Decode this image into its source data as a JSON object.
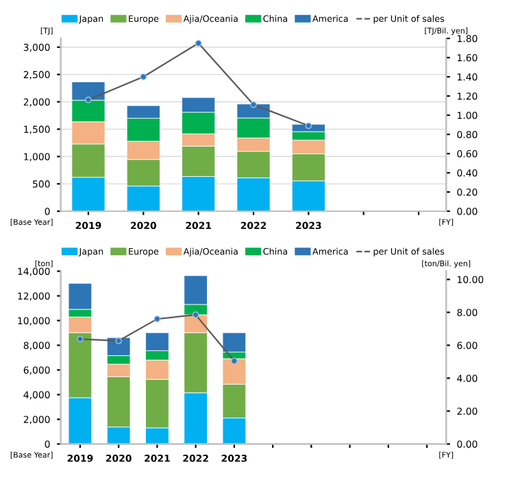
{
  "chart_data": [
    {
      "type": "bar",
      "stacked": true,
      "categories": [
        "2019",
        "2020",
        "2021",
        "2022",
        "2023",
        null,
        null
      ],
      "ylabel": "[TJ]",
      "y2label": "[TJ/Bil. yen]",
      "ylim": [
        0,
        3160
      ],
      "yticks": [
        0,
        {
          "value": 500,
          "label": "500"
        },
        {
          "value": 1000,
          "label": "1,000"
        },
        {
          "value": 1500,
          "label": "1,500"
        },
        {
          "value": 2000,
          "label": "2,000"
        },
        {
          "value": 2500,
          "label": "2,500"
        },
        {
          "value": 3000,
          "label": "3,000"
        }
      ],
      "y2lim": [
        0,
        1.8
      ],
      "y2ticks": [
        {
          "value": 0,
          "label": "0.00"
        },
        {
          "value": 0.2,
          "label": "0.20"
        },
        {
          "value": 0.4,
          "label": "0.40"
        },
        {
          "value": 0.6,
          "label": "0.60"
        },
        {
          "value": 0.8,
          "label": "0.80"
        },
        {
          "value": 1.0,
          "label": "1.00"
        },
        {
          "value": 1.2,
          "label": "1.20"
        },
        {
          "value": 1.4,
          "label": "1.40"
        },
        {
          "value": 1.6,
          "label": "1.60"
        },
        {
          "value": 1.8,
          "label": "1.80"
        }
      ],
      "grid": "y",
      "legend": "top",
      "annotations": [
        "[Base Year]",
        "[FY]"
      ],
      "series": [
        {
          "name": "Japan",
          "color": "#00b0f0",
          "values": [
            620,
            460,
            635,
            610,
            555,
            null,
            null
          ]
        },
        {
          "name": "Europe",
          "color": "#70ad47",
          "values": [
            610,
            485,
            555,
            485,
            495,
            null,
            null
          ]
        },
        {
          "name": "Ajia/Oceania",
          "color": "#f4b183",
          "values": [
            405,
            335,
            225,
            245,
            250,
            null,
            null
          ]
        },
        {
          "name": "China",
          "color": "#00b050",
          "values": [
            395,
            420,
            395,
            365,
            155,
            null,
            null
          ]
        },
        {
          "name": "America",
          "color": "#2e75b6",
          "values": [
            335,
            230,
            270,
            255,
            135,
            null,
            null
          ]
        },
        {
          "name": "per Unit of sales",
          "type": "line",
          "axis": "y2",
          "marker": "circle",
          "color": "#595959",
          "values": [
            1.16,
            1.4,
            1.75,
            1.11,
            0.89,
            null,
            null
          ]
        }
      ]
    },
    {
      "type": "bar",
      "stacked": true,
      "categories": [
        "2019",
        "2020",
        "2021",
        "2022",
        "2023",
        null,
        null,
        null,
        null,
        null
      ],
      "ylabel": "[ton]",
      "y2label": "[ton/Bil. yen]",
      "ylim": [
        0,
        14000
      ],
      "yticks": [
        0,
        {
          "value": 2000,
          "label": "2,000"
        },
        {
          "value": 4000,
          "label": "4,000"
        },
        {
          "value": 6000,
          "label": "6,000"
        },
        {
          "value": 8000,
          "label": "8,000"
        },
        {
          "value": 10000,
          "label": "10,000"
        },
        {
          "value": 12000,
          "label": "12,000"
        },
        {
          "value": 14000,
          "label": "14,000"
        }
      ],
      "y2lim": [
        0,
        10.5
      ],
      "y2ticks": [
        {
          "value": 0,
          "label": "0.00"
        },
        {
          "value": 2,
          "label": "2.00"
        },
        {
          "value": 4,
          "label": "4.00"
        },
        {
          "value": 6,
          "label": "6.00"
        },
        {
          "value": 8,
          "label": "8.00"
        },
        {
          "value": 10,
          "label": "10.00"
        }
      ],
      "grid": false,
      "legend": "top",
      "annotations": [
        "[Base Year]",
        "[FY]"
      ],
      "series": [
        {
          "name": "Japan",
          "color": "#00b0f0",
          "values": [
            3750,
            1380,
            1310,
            4150,
            2110,
            null,
            null,
            null,
            null,
            null
          ]
        },
        {
          "name": "Europe",
          "color": "#70ad47",
          "values": [
            5270,
            4070,
            3930,
            4870,
            2730,
            null,
            null,
            null,
            null,
            null
          ]
        },
        {
          "name": "Ajia/Oceania",
          "color": "#f4b183",
          "values": [
            1270,
            1020,
            1560,
            1450,
            2070,
            null,
            null,
            null,
            null,
            null
          ]
        },
        {
          "name": "China",
          "color": "#00b050",
          "values": [
            620,
            690,
            760,
            840,
            540,
            null,
            null,
            null,
            null,
            null
          ]
        },
        {
          "name": "America",
          "color": "#2e75b6",
          "values": [
            2110,
            1460,
            1460,
            2330,
            1570,
            null,
            null,
            null,
            null,
            null
          ]
        },
        {
          "name": "per Unit of sales",
          "type": "line",
          "axis": "y2",
          "marker": "circle",
          "color": "#595959",
          "values": [
            6.38,
            6.27,
            7.6,
            7.85,
            5.04,
            null,
            null,
            null,
            null,
            null
          ]
        }
      ]
    }
  ]
}
